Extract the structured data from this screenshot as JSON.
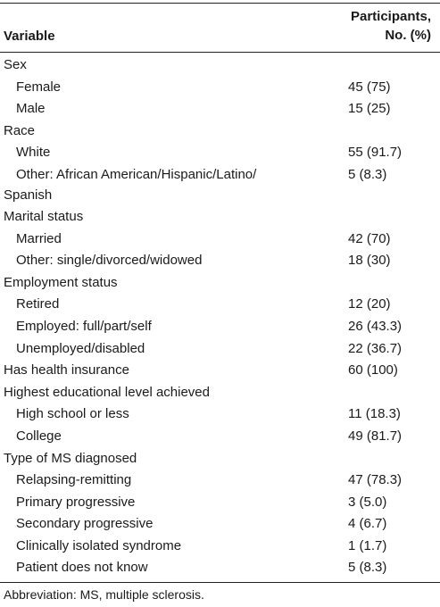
{
  "header": {
    "variable": "Variable",
    "participants_line1": "Participants,",
    "participants_line2": "No. (%)"
  },
  "rows": [
    {
      "label": "Sex",
      "value": "",
      "indent": false
    },
    {
      "label": "Female",
      "value": "45 (75)",
      "indent": true
    },
    {
      "label": "Male",
      "value": "15 (25)",
      "indent": true
    },
    {
      "label": "Race",
      "value": "",
      "indent": false
    },
    {
      "label": "White",
      "value": "55 (91.7)",
      "indent": true
    },
    {
      "label": "Other: African American/Hispanic/Latino/",
      "label_cont": "Spanish",
      "value": "5 (8.3)",
      "indent": true
    },
    {
      "label": "Marital status",
      "value": "",
      "indent": false
    },
    {
      "label": "Married",
      "value": "42 (70)",
      "indent": true
    },
    {
      "label": "Other: single/divorced/widowed",
      "value": "18 (30)",
      "indent": true
    },
    {
      "label": "Employment status",
      "value": "",
      "indent": false
    },
    {
      "label": "Retired",
      "value": "12 (20)",
      "indent": true
    },
    {
      "label": "Employed: full/part/self",
      "value": "26 (43.3)",
      "indent": true
    },
    {
      "label": "Unemployed/disabled",
      "value": "22 (36.7)",
      "indent": true
    },
    {
      "label": "Has health insurance",
      "value": "60 (100)",
      "indent": false
    },
    {
      "label": "Highest educational level achieved",
      "value": "",
      "indent": false
    },
    {
      "label": "High school or less",
      "value": "11 (18.3)",
      "indent": true
    },
    {
      "label": "College",
      "value": "49 (81.7)",
      "indent": true
    },
    {
      "label": "Type of MS diagnosed",
      "value": "",
      "indent": false
    },
    {
      "label": "Relapsing-remitting",
      "value": "47 (78.3)",
      "indent": true
    },
    {
      "label": "Primary progressive",
      "value": "3 (5.0)",
      "indent": true
    },
    {
      "label": "Secondary progressive",
      "value": "4 (6.7)",
      "indent": true
    },
    {
      "label": "Clinically isolated syndrome",
      "value": "1 (1.7)",
      "indent": true
    },
    {
      "label": "Patient does not know",
      "value": "5 (8.3)",
      "indent": true
    }
  ],
  "footnote": "Abbreviation: MS, multiple sclerosis."
}
